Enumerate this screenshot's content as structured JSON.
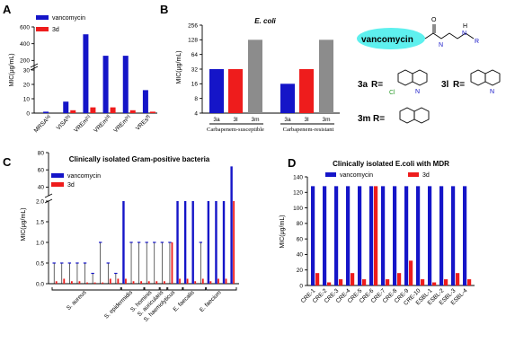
{
  "panels": {
    "A": "A",
    "B": "B",
    "C": "C",
    "D": "D"
  },
  "colors": {
    "vancomycin": "#1515c8",
    "d3": "#ee1c1c",
    "gray": "#8c8c8c",
    "pill": "#5ef0ee"
  },
  "legend": {
    "vancomycin": "vancomycin",
    "d3": "3d"
  },
  "chart_data": [
    {
      "panel": "A",
      "type": "bar",
      "ylabel": "MIC(μg/mL)",
      "categories": [
        "MRSA",
        "VISA",
        "VREm",
        "VREm",
        "VREm",
        "VREs"
      ],
      "superscripts": [
        "[a]",
        "[b]",
        "[c]",
        "[d]",
        "[e]",
        "[f]"
      ],
      "y_ticks_lower": [
        "0",
        "10",
        "20",
        "30"
      ],
      "y_ticks_upper": [
        "200",
        "400",
        "600"
      ],
      "broken_axis": {
        "lower": [
          0,
          30
        ],
        "upper": [
          150,
          600
        ]
      },
      "series": [
        {
          "name": "vancomycin",
          "values": [
            1,
            8,
            512,
            256,
            256,
            16
          ]
        },
        {
          "name": "3d",
          "values": [
            0,
            2,
            4,
            4,
            2,
            1
          ]
        }
      ]
    },
    {
      "panel": "B",
      "type": "bar",
      "title": "E. coli",
      "ylabel": "MIC(μg/mL)",
      "yscale": "log2",
      "y_ticks": [
        "4",
        "8",
        "16",
        "32",
        "64",
        "128",
        "256"
      ],
      "categories": [
        "3a",
        "3l",
        "3m",
        "3a",
        "3l",
        "3m"
      ],
      "groups": [
        "Carbapenem-susceptible",
        "Carbapenem-resistant"
      ],
      "values": [
        32,
        32,
        128,
        16,
        32,
        128
      ],
      "bar_colors": [
        "vancomycin",
        "d3",
        "gray",
        "vancomycin",
        "d3",
        "gray"
      ]
    },
    {
      "panel": "C",
      "type": "bar",
      "title": "Clinically isolated Gram-positive bacteria",
      "ylabel": "MIC(μg/mL)",
      "y_ticks_lower": [
        "0.0",
        "0.5",
        "1.0",
        "1.5",
        "2.0"
      ],
      "y_ticks_upper": [
        "40",
        "60",
        "80"
      ],
      "broken_axis": {
        "lower": [
          0,
          2
        ],
        "upper": [
          30,
          80
        ]
      },
      "groups": [
        {
          "name": "S. aureus",
          "count": 9
        },
        {
          "name": "S. epidermidis",
          "count": 3
        },
        {
          "name": "S. hominis",
          "count": 2
        },
        {
          "name": "S. auricularis",
          "count": 1
        },
        {
          "name": "S. haemolyticus",
          "count": 2
        },
        {
          "name": "E. faecalis",
          "count": 3
        },
        {
          "name": "E. faecium",
          "count": 4
        }
      ],
      "series": [
        {
          "name": "vancomycin",
          "values": [
            0.5,
            0.5,
            0.5,
            0.5,
            0.5,
            0.25,
            1,
            0.5,
            0.25,
            2,
            1,
            1,
            1,
            1,
            1,
            1,
            2,
            2,
            2,
            1,
            2,
            2,
            2,
            64
          ]
        },
        {
          "name": "3d",
          "values": [
            0.06,
            0.12,
            0.06,
            0.06,
            0.03,
            0.03,
            0.03,
            0.12,
            0.12,
            0.12,
            0.06,
            0.06,
            0.06,
            0.06,
            0.06,
            1,
            0.12,
            0.12,
            0.06,
            0.12,
            0.06,
            0.12,
            0.12,
            2
          ]
        }
      ]
    },
    {
      "panel": "D",
      "type": "bar",
      "title": "Clinically isolated E.coli with MDR",
      "ylabel": "MIC(μg/mL)",
      "ylim": [
        0,
        140
      ],
      "y_ticks": [
        "0",
        "20",
        "40",
        "60",
        "80",
        "100",
        "120",
        "140"
      ],
      "categories": [
        "CRE-1",
        "CRE-2",
        "CRE-3",
        "CRE-4",
        "CRE-5",
        "CRE-6",
        "CRE-7",
        "CRE-8",
        "CRE-9",
        "CRE-10",
        "ESBL-1",
        "ESBL-2",
        "ESBL-3",
        "ESBL-4"
      ],
      "series": [
        {
          "name": "vancomycin",
          "values": [
            128,
            128,
            128,
            128,
            128,
            128,
            128,
            128,
            128,
            128,
            128,
            128,
            128,
            128
          ]
        },
        {
          "name": "3d",
          "values": [
            16,
            4,
            8,
            16,
            8,
            128,
            8,
            16,
            32,
            8,
            4,
            8,
            16,
            8
          ]
        }
      ]
    }
  ],
  "chem": {
    "vancomycin_label": "vancomycin",
    "O": "O",
    "H": "H",
    "N1": "N",
    "N2": "N",
    "R": "R",
    "r3a": "3a",
    "r3l": "3l",
    "r3m": "3m",
    "req": "R=",
    "cl": "Cl",
    "nq": "N"
  }
}
